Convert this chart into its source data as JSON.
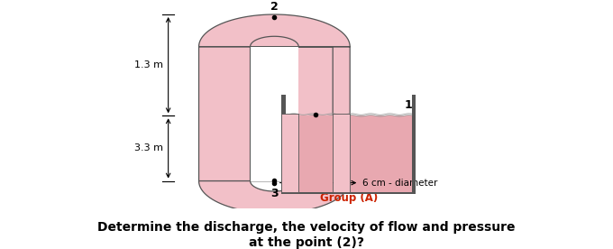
{
  "bg_color": "#ffffff",
  "pipe_fill": "#f2c0c8",
  "pipe_edge": "#555555",
  "water_fill": "#e8a8b0",
  "tank_edge": "#555555",
  "group_color": "#cc2200",
  "title_text": "Determine the discharge, the velocity of flow and pressure\nat the point (2)?",
  "group_text": "Group (A)",
  "dim_13": "1.3 m",
  "dim_33": "3.3 m",
  "diam_text": "6 cm - diameter",
  "lbl_1": "1",
  "lbl_2": "2",
  "lbl_3": "3",
  "figsize": [
    6.8,
    2.76
  ],
  "dpi": 100
}
